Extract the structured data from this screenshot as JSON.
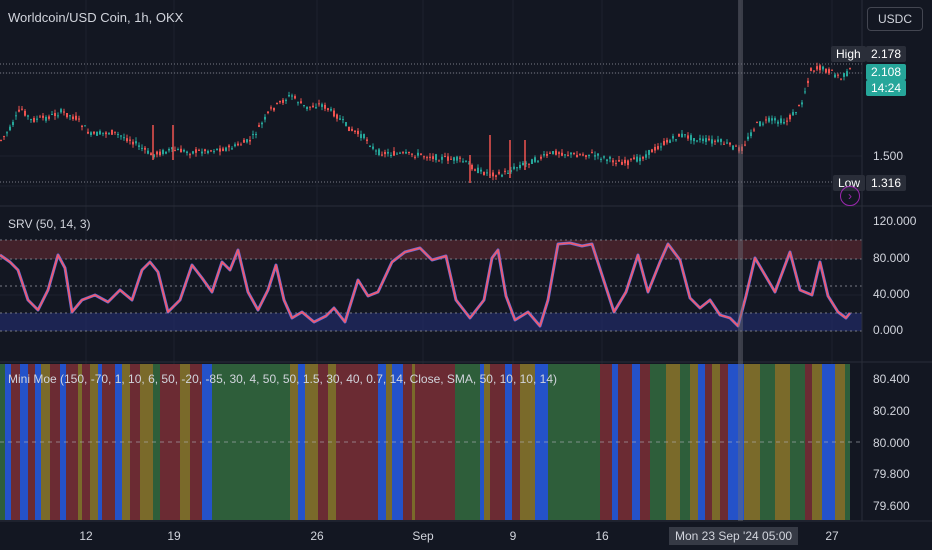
{
  "header": {
    "title": "Worldcoin/USD Coin, 1h, OKX",
    "currency_button": "USDC"
  },
  "price_pane": {
    "high_label": "High",
    "high_value": "2.178",
    "last_price": "2.108",
    "countdown": "14:24",
    "low_label": "Low",
    "low_value": "1.316",
    "axis_tick": "1.500"
  },
  "srv_pane": {
    "title": "SRV (50, 14, 3)",
    "ticks": [
      "120.000",
      "80.000",
      "40.000",
      "0.000"
    ]
  },
  "moe_pane": {
    "title": "Mini Moe (150, -70, 1, 10, 6, 50, -20, -85, 30, 4, 50, 50, 1.5, 30, 40, 0.7, 14, Close, SMA, 50, 10, 10, 14)",
    "ticks": [
      "80.400",
      "80.200",
      "80.000",
      "79.800",
      "79.600"
    ]
  },
  "x_axis": {
    "ticks": [
      "12",
      "19",
      "26",
      "Sep",
      "9",
      "16",
      "23",
      "27"
    ],
    "crosshair_label": "Mon 23 Sep '24   05:00"
  },
  "colors": {
    "background": "#131722",
    "bull": "#26a69a",
    "bear": "#ef5350",
    "srv_line": "#f05a6e",
    "srv_shadow": "#5b6ee1",
    "moe_green": "#2e5e3a",
    "moe_red": "#6b2b33",
    "moe_yellow": "#7a6a2a",
    "moe_blue": "#2452c9"
  },
  "chart_data": [
    {
      "type": "candlestick",
      "title": "Worldcoin/USD Coin, 1h, OKX",
      "x": [
        "Aug 12",
        "Aug 19",
        "Aug 26",
        "Sep 1",
        "Sep 9",
        "Sep 16",
        "Sep 23",
        "Sep 27"
      ],
      "close": [
        1.68,
        1.52,
        1.75,
        1.47,
        1.45,
        1.53,
        1.6,
        2.108
      ],
      "high": 2.178,
      "low": 1.316,
      "ylim": [
        1.25,
        2.3
      ]
    },
    {
      "type": "line",
      "title": "SRV (50, 14, 3)",
      "levels": [
        0,
        20,
        50,
        80,
        100
      ],
      "ylim": [
        -10,
        120
      ]
    },
    {
      "type": "heatmap",
      "title": "Mini Moe",
      "categories": [
        "green",
        "red",
        "yellow",
        "blue"
      ],
      "ylim": [
        79.55,
        80.45
      ]
    }
  ]
}
